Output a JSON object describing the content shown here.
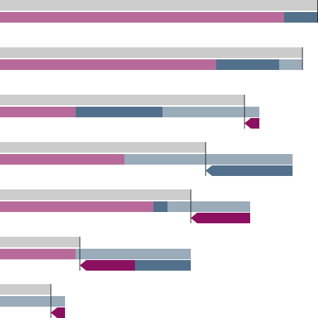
{
  "chart_data": {
    "type": "bullet",
    "xlim": [
      0,
      450
    ],
    "target": {
      "color": "#cccccc",
      "values": [
        450,
        428,
        346,
        291,
        270,
        113,
        72
      ]
    },
    "series": [
      {
        "color": "#b86b9a",
        "values": [
          402,
          306,
          107,
          176,
          217,
          107,
          0
        ]
      },
      {
        "color": "#52708c",
        "values": [
          48,
          89,
          123,
          0,
          20,
          0,
          0
        ]
      },
      {
        "color": "#9aabb9",
        "values": [
          0,
          33,
          137,
          238,
          117,
          163,
          92
        ]
      }
    ],
    "arrows": [
      {
        "color": "#8b1060",
        "values": [
          0,
          0,
          21,
          0,
          84,
          78,
          20
        ]
      },
      {
        "color": "#52708c",
        "values": [
          0,
          0,
          0,
          123,
          0,
          79,
          0
        ]
      }
    ]
  }
}
